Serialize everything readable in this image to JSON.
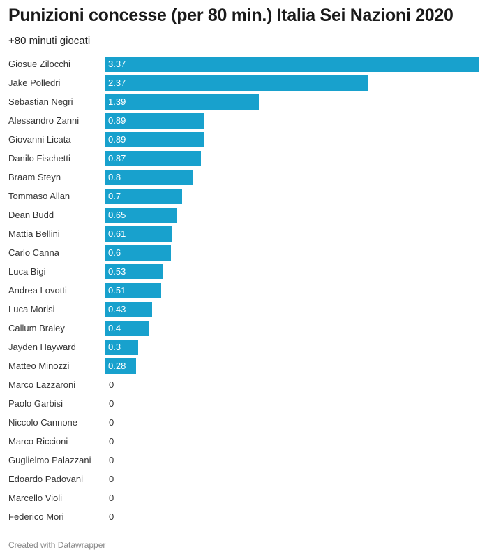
{
  "header": {
    "title": "Punizioni concesse (per 80 min.) Italia Sei Nazioni 2020",
    "subtitle": "+80 minuti giocati"
  },
  "footer": {
    "credit": "Created with Datawrapper"
  },
  "colors": {
    "bar": "#18a1cd"
  },
  "chart_data": {
    "type": "bar",
    "orientation": "horizontal",
    "title": "Punizioni concesse (per 80 min.) Italia Sei Nazioni 2020",
    "subtitle": "+80 minuti giocati",
    "xlabel": "",
    "ylabel": "",
    "xlim": [
      0,
      3.37
    ],
    "categories": [
      "Giosue Zilocchi",
      "Jake Polledri",
      "Sebastian Negri",
      "Alessandro Zanni",
      "Giovanni Licata",
      "Danilo Fischetti",
      "Braam Steyn",
      "Tommaso Allan",
      "Dean Budd",
      "Mattia Bellini",
      "Carlo Canna",
      "Luca Bigi",
      "Andrea Lovotti",
      "Luca Morisi",
      "Callum Braley",
      "Jayden Hayward",
      "Matteo Minozzi",
      "Marco Lazzaroni",
      "Paolo Garbisi",
      "Niccolo Cannone",
      "Marco Riccioni",
      "Guglielmo Palazzani",
      "Edoardo Padovani",
      "Marcello Violi",
      "Federico Mori"
    ],
    "values": [
      3.37,
      2.37,
      1.39,
      0.89,
      0.89,
      0.87,
      0.8,
      0.7,
      0.65,
      0.61,
      0.6,
      0.53,
      0.51,
      0.43,
      0.4,
      0.3,
      0.28,
      0,
      0,
      0,
      0,
      0,
      0,
      0,
      0
    ],
    "labels": [
      "3.37",
      "2.37",
      "1.39",
      "0.89",
      "0.89",
      "0.87",
      "0.8",
      "0.7",
      "0.65",
      "0.61",
      "0.6",
      "0.53",
      "0.51",
      "0.43",
      "0.4",
      "0.3",
      "0.28",
      "0",
      "0",
      "0",
      "0",
      "0",
      "0",
      "0",
      "0"
    ]
  }
}
